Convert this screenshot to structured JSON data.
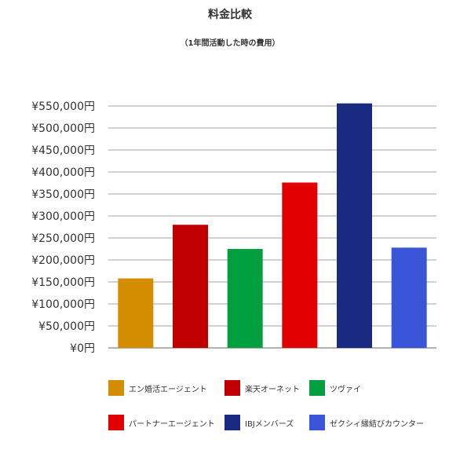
{
  "chart_data": {
    "type": "bar",
    "title": "料金比較",
    "subtitle": "（1年間活動した時の費用）",
    "categories": [
      "エン婚活エージェント",
      "楽天オーネット",
      "ツヴァイ",
      "パートナーエージェント",
      "IBJメンバーズ",
      "ゼクシィ縁結びカウンター"
    ],
    "values": [
      158000,
      280000,
      225000,
      376000,
      556000,
      228000
    ],
    "colors": [
      "#d48c00",
      "#c00000",
      "#00a040",
      "#e00000",
      "#1a2a80",
      "#3a55d8"
    ],
    "ylim": [
      0,
      550000
    ],
    "yticks": [
      0,
      50000,
      100000,
      150000,
      200000,
      250000,
      300000,
      350000,
      400000,
      450000,
      500000,
      550000
    ],
    "ytick_labels": [
      "¥0円",
      "¥50,000円",
      "¥100,000円",
      "¥150,000円",
      "¥200,000円",
      "¥250,000円",
      "¥300,000円",
      "¥350,000円",
      "¥400,000円",
      "¥450,000円",
      "¥500,000円",
      "¥550,000円"
    ],
    "grid": true,
    "legend_position": "bottom"
  }
}
